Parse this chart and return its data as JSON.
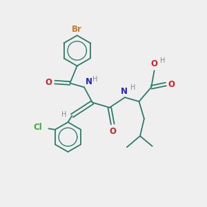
{
  "background_color": "#efefef",
  "bond_color": "#2d7a6b",
  "atom_colors": {
    "Br": "#cc7722",
    "Cl": "#3aaa3a",
    "N": "#2222cc",
    "O": "#cc2222",
    "H": "#888888"
  },
  "font_size": 8.5,
  "bond_lw": 1.3
}
